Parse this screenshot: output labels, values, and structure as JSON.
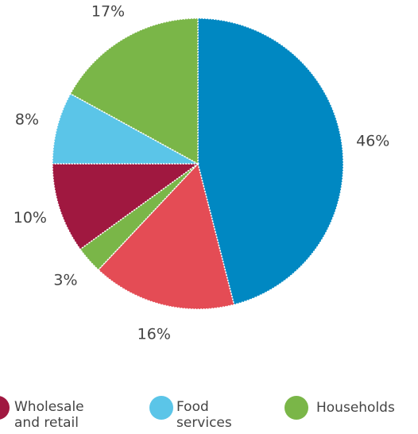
{
  "chart_data": {
    "type": "pie",
    "categories": [
      null,
      null,
      null,
      "Wholesale and retail",
      "Food services",
      "Households"
    ],
    "values": [
      46,
      16,
      3,
      10,
      8,
      17
    ],
    "value_labels": [
      "46%",
      "16%",
      "3%",
      "10%",
      "8%",
      "17%"
    ],
    "colors": [
      "#0088c2",
      "#e44c55",
      "#7ab648",
      "#a01840",
      "#5bc5e8",
      "#7ab648"
    ]
  }
}
